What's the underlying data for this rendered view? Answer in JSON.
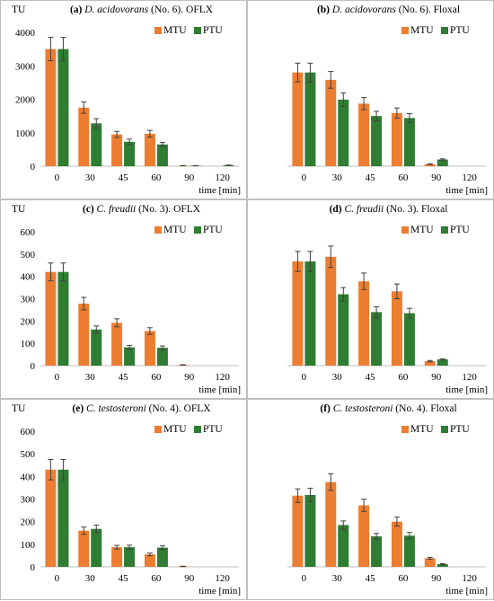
{
  "colors": {
    "mtu": "#ed7d31",
    "ptu": "#2e7d32",
    "axis": "#bfbfbf",
    "error": "#404040"
  },
  "chart_data": [
    {
      "type": "bar",
      "label": "(a)",
      "species": "D. acidovorans",
      "strain": " (No. 6). ",
      "drug": "OFLX",
      "ylabel": "TU",
      "xlabel": "time [min]",
      "categories": [
        "0",
        "30",
        "45",
        "60",
        "90",
        "120"
      ],
      "ylim": [
        0,
        4000
      ],
      "yticks": [
        "0",
        "1000",
        "2000",
        "3000",
        "4000"
      ],
      "legend": "top-right",
      "series": [
        {
          "name": "MTU",
          "values": [
            3500,
            1750,
            950,
            970,
            15,
            0
          ],
          "errors": [
            350,
            170,
            90,
            100,
            3,
            0
          ]
        },
        {
          "name": "PTU",
          "values": [
            3500,
            1280,
            730,
            650,
            15,
            30
          ],
          "errors": [
            350,
            140,
            80,
            60,
            3,
            5
          ]
        }
      ]
    },
    {
      "type": "bar",
      "label": "(b)",
      "species": "D. acidovorans",
      "strain": " (No. 6). ",
      "drug": "Floxal",
      "ylabel": "",
      "xlabel": "time [min]",
      "categories": [
        "0",
        "30",
        "45",
        "60",
        "90",
        "120"
      ],
      "ylim": [
        0,
        4000
      ],
      "yticks": [],
      "legend": "top-right",
      "series": [
        {
          "name": "MTU",
          "values": [
            2800,
            2580,
            1870,
            1590,
            60,
            0
          ],
          "errors": [
            280,
            250,
            180,
            150,
            10,
            0
          ]
        },
        {
          "name": "PTU",
          "values": [
            2800,
            1990,
            1500,
            1440,
            200,
            0
          ],
          "errors": [
            280,
            200,
            140,
            130,
            20,
            0
          ]
        }
      ]
    },
    {
      "type": "bar",
      "label": "(c)",
      "species": "C. freudii",
      "strain": " (No. 3). ",
      "drug": "OFLX",
      "ylabel": "TU",
      "xlabel": "time [min]",
      "categories": [
        "0",
        "30",
        "45",
        "60",
        "90",
        "120"
      ],
      "ylim": [
        0,
        600
      ],
      "yticks": [
        "0",
        "100",
        "200",
        "300",
        "400",
        "500",
        "600"
      ],
      "legend": "top-right",
      "series": [
        {
          "name": "MTU",
          "values": [
            420,
            278,
            192,
            155,
            3,
            0
          ],
          "errors": [
            40,
            28,
            18,
            15,
            1,
            0
          ]
        },
        {
          "name": "PTU",
          "values": [
            420,
            162,
            82,
            80,
            0,
            0
          ],
          "errors": [
            40,
            16,
            9,
            8,
            0,
            0
          ]
        }
      ]
    },
    {
      "type": "bar",
      "label": "(d)",
      "species": "C. freudii",
      "strain": " (No. 3). ",
      "drug": "Floxal",
      "ylabel": "",
      "xlabel": "time [min]",
      "categories": [
        "0",
        "30",
        "45",
        "60",
        "90",
        "120"
      ],
      "ylim": [
        0,
        600
      ],
      "yticks": [],
      "legend": "top-right",
      "series": [
        {
          "name": "MTU",
          "values": [
            467,
            488,
            378,
            333,
            20,
            0
          ],
          "errors": [
            45,
            48,
            37,
            33,
            3,
            0
          ]
        },
        {
          "name": "PTU",
          "values": [
            467,
            320,
            240,
            235,
            28,
            0
          ],
          "errors": [
            45,
            30,
            24,
            22,
            3,
            0
          ]
        }
      ]
    },
    {
      "type": "bar",
      "label": "(e)",
      "species": "C. testosteroni",
      "strain": " (No. 4). ",
      "drug": "OFLX",
      "ylabel": "TU",
      "xlabel": "time [min]",
      "categories": [
        "0",
        "30",
        "45",
        "60",
        "90",
        "120"
      ],
      "ylim": [
        0,
        600
      ],
      "yticks": [
        "0",
        "100",
        "200",
        "300",
        "400",
        "500",
        "600"
      ],
      "legend": "top-right",
      "series": [
        {
          "name": "MTU",
          "values": [
            430,
            160,
            87,
            55,
            2,
            0
          ],
          "errors": [
            45,
            16,
            8,
            6,
            1,
            0
          ]
        },
        {
          "name": "PTU",
          "values": [
            430,
            168,
            87,
            85,
            0,
            0
          ],
          "errors": [
            45,
            17,
            9,
            8,
            0,
            0
          ]
        }
      ]
    },
    {
      "type": "bar",
      "label": "(f)",
      "species": "C. testosteroni",
      "strain": " (No. 4). ",
      "drug": "Floxal",
      "ylabel": "",
      "xlabel": "time [min]",
      "categories": [
        "0",
        "30",
        "45",
        "60",
        "90",
        "120"
      ],
      "ylim": [
        0,
        600
      ],
      "yticks": [],
      "legend": "top-right",
      "series": [
        {
          "name": "MTU",
          "values": [
            315,
            375,
            272,
            200,
            38,
            0
          ],
          "errors": [
            30,
            37,
            27,
            20,
            4,
            0
          ]
        },
        {
          "name": "PTU",
          "values": [
            318,
            185,
            135,
            138,
            12,
            0
          ],
          "errors": [
            30,
            18,
            13,
            14,
            2,
            0
          ]
        }
      ]
    }
  ]
}
